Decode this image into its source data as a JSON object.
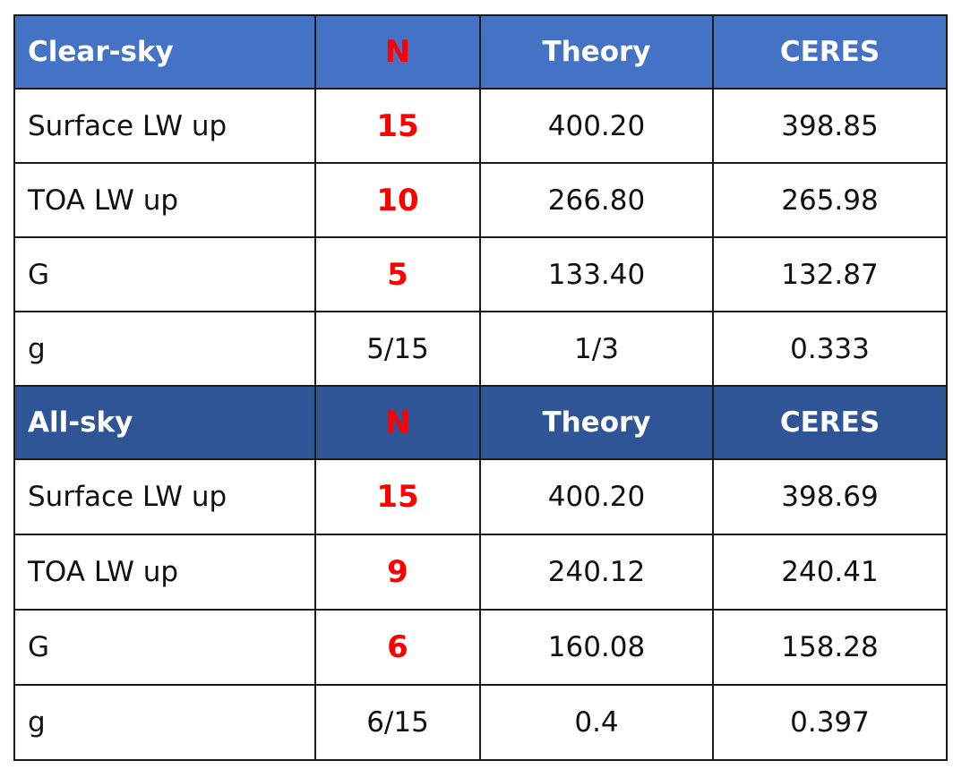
{
  "sections": [
    {
      "header": {
        "label": "Clear-sky",
        "n": "N",
        "theory": "Theory",
        "ceres": "CERES"
      },
      "rows": [
        {
          "label": "Surface LW up",
          "n": "15",
          "theory": "400.20",
          "ceres": "398.85"
        },
        {
          "label": "TOA LW up",
          "n": "10",
          "theory": "266.80",
          "ceres": "265.98"
        },
        {
          "label": "G",
          "n": "5",
          "theory": "133.40",
          "ceres": "132.87"
        },
        {
          "label": "g",
          "n": "5/15",
          "theory": "1/3",
          "ceres": "0.333"
        }
      ]
    },
    {
      "header": {
        "label": "All-sky",
        "n": "N",
        "theory": "Theory",
        "ceres": "CERES"
      },
      "rows": [
        {
          "label": "Surface LW up",
          "n": "15",
          "theory": "400.20",
          "ceres": "398.69"
        },
        {
          "label": "TOA LW up",
          "n": "9",
          "theory": "240.12",
          "ceres": "240.41"
        },
        {
          "label": "G",
          "n": "6",
          "theory": "160.08",
          "ceres": "158.28"
        },
        {
          "label": "g",
          "n": "6/15",
          "theory": "0.4",
          "ceres": "0.397"
        }
      ]
    }
  ],
  "colors": {
    "clear_header": "#4472c4",
    "all_header": "#2f5597",
    "highlight": "#ff0000"
  }
}
